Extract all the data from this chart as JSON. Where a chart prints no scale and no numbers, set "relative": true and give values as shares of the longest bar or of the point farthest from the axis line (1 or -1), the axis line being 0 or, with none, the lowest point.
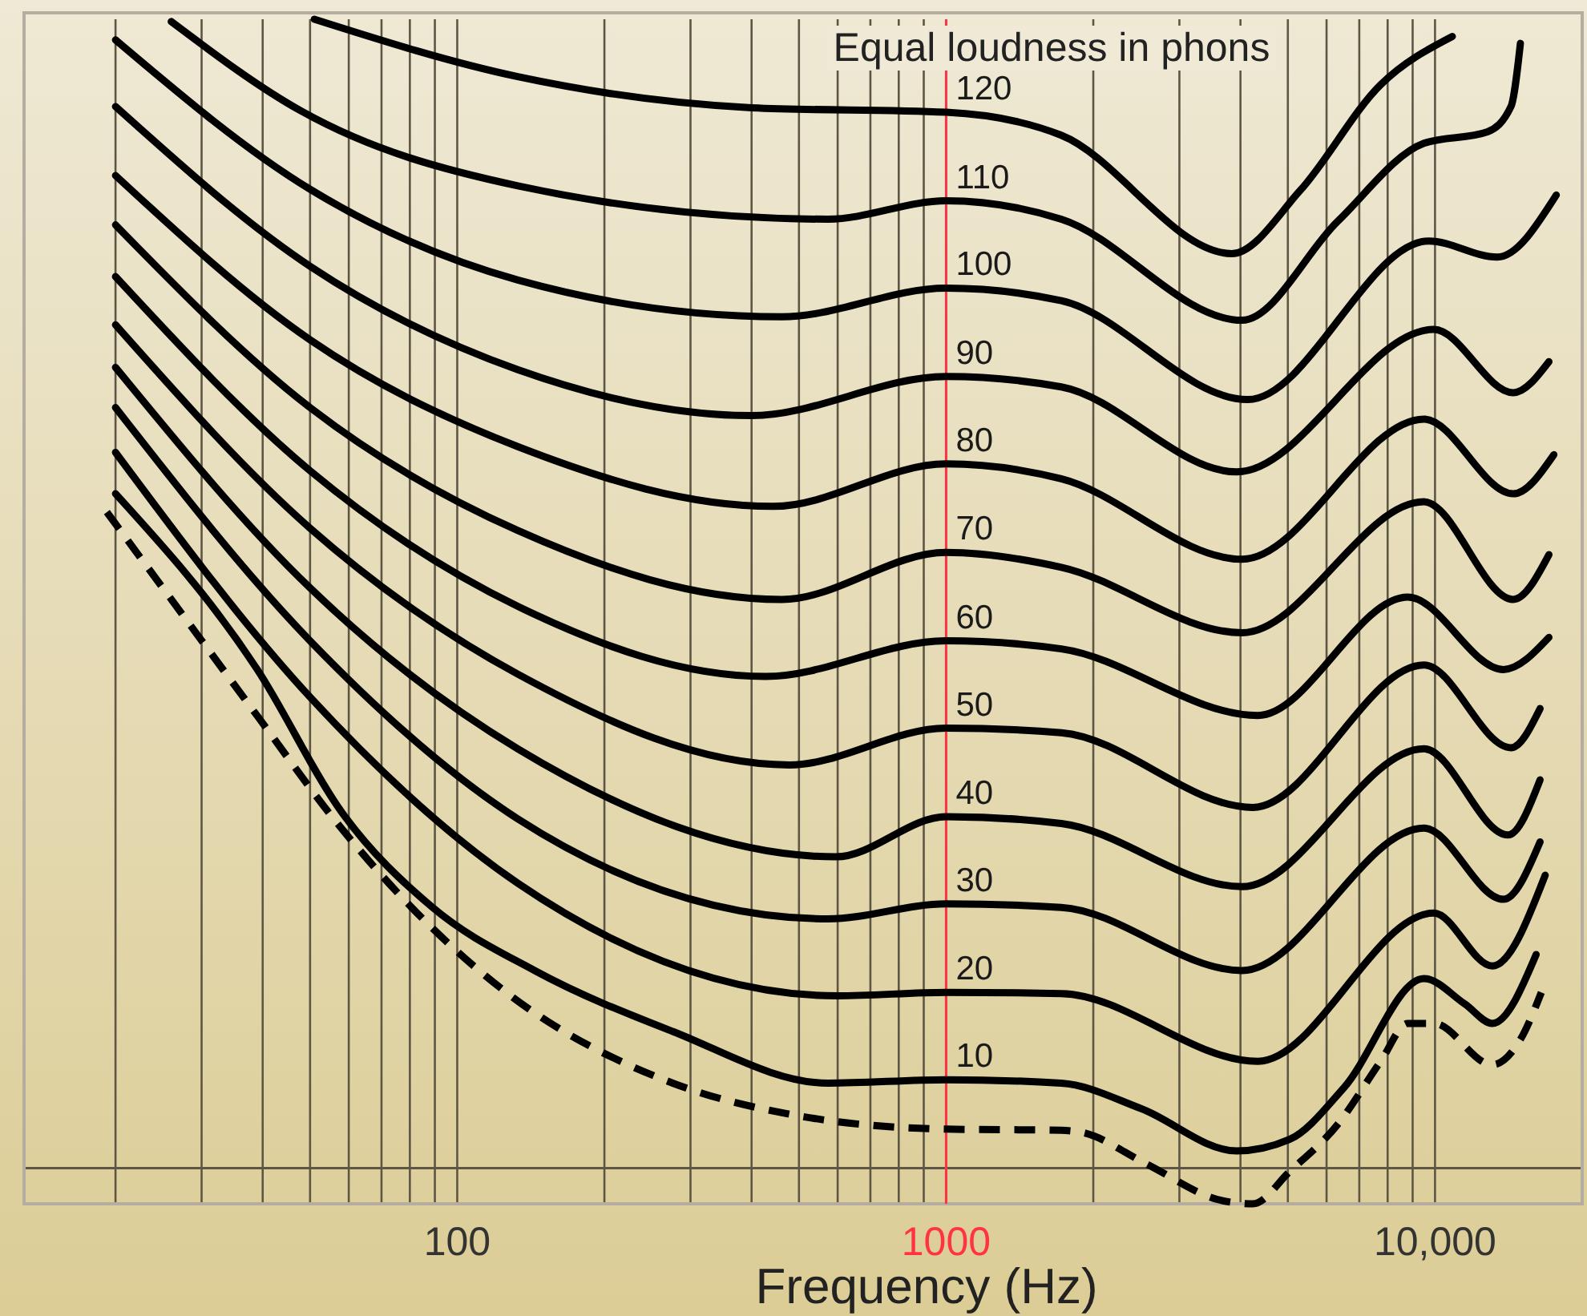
{
  "chart_data": {
    "type": "line",
    "xlabel": "Frequency (Hz)",
    "annotations": [
      "Equal loudness in phons"
    ],
    "log": "x",
    "grid": "x",
    "relative": true,
    "xlim": [
      13,
      20000
    ],
    "xticks": [
      {
        "value": 20,
        "label": null
      },
      {
        "value": 30,
        "label": null
      },
      {
        "value": 40,
        "label": null
      },
      {
        "value": 50,
        "label": null
      },
      {
        "value": 60,
        "label": null
      },
      {
        "value": 70,
        "label": null
      },
      {
        "value": 80,
        "label": null
      },
      {
        "value": 90,
        "label": null
      },
      100,
      {
        "value": 200,
        "label": null
      },
      {
        "value": 300,
        "label": null
      },
      {
        "value": 400,
        "label": null
      },
      {
        "value": 500,
        "label": null
      },
      {
        "value": 600,
        "label": null
      },
      {
        "value": 700,
        "label": null
      },
      {
        "value": 800,
        "label": null
      },
      {
        "value": 900,
        "label": null
      },
      1000,
      {
        "value": 2000,
        "label": null
      },
      {
        "value": 3000,
        "label": null
      },
      {
        "value": 4000,
        "label": null
      },
      {
        "value": 5000,
        "label": null
      },
      {
        "value": 6000,
        "label": null
      },
      {
        "value": 7000,
        "label": null
      },
      {
        "value": 8000,
        "label": null
      },
      {
        "value": 9000,
        "label": null
      },
      {
        "value": 10000,
        "label": "10,000"
      }
    ],
    "ref_lines": [
      {
        "axis": "x",
        "value": 1000,
        "color": "#ff3344"
      }
    ],
    "series": [
      {
        "name": "120",
        "color": "#000000",
        "x": [
          51,
          133,
          400,
          1000,
          1720,
          3840,
          5300,
          7740,
          10850
        ],
        "values": [
          1.0,
          0.95,
          0.923,
          0.919,
          0.899,
          0.796,
          0.851,
          0.943,
          0.985
        ]
      },
      {
        "name": "110",
        "color": "#000000",
        "x": [
          26,
          48,
          133,
          573,
          1000,
          1720,
          4030,
          6320,
          9490,
          12800,
          14300,
          14950
        ],
        "values": [
          0.998,
          0.92,
          0.855,
          0.826,
          0.842,
          0.826,
          0.738,
          0.824,
          0.892,
          0.902,
          0.924,
          0.979
        ]
      },
      {
        "name": "100",
        "color": "#000000",
        "x": [
          20,
          50,
          133,
          461,
          1000,
          1720,
          4140,
          9710,
          13400,
          17700
        ],
        "values": [
          0.982,
          0.852,
          0.773,
          0.741,
          0.766,
          0.755,
          0.669,
          0.807,
          0.793,
          0.847
        ]
      },
      {
        "name": "90",
        "color": "#000000",
        "x": [
          20,
          50,
          133,
          400,
          1000,
          1720,
          3930,
          9940,
          14450,
          17100
        ],
        "values": [
          0.924,
          0.785,
          0.695,
          0.655,
          0.689,
          0.68,
          0.606,
          0.73,
          0.675,
          0.702
        ]
      },
      {
        "name": "80",
        "color": "#000000",
        "x": [
          20,
          50,
          133,
          443,
          1000,
          1720,
          4030,
          9490,
          14450,
          17500
        ],
        "values": [
          0.864,
          0.721,
          0.628,
          0.576,
          0.613,
          0.6,
          0.53,
          0.652,
          0.587,
          0.621
        ]
      },
      {
        "name": "70",
        "color": "#000000",
        "x": [
          20,
          50,
          133,
          461,
          1000,
          1720,
          4030,
          9490,
          14450,
          17100
        ],
        "values": [
          0.821,
          0.662,
          0.555,
          0.495,
          0.536,
          0.523,
          0.466,
          0.58,
          0.495,
          0.534
        ]
      },
      {
        "name": "60",
        "color": "#000000",
        "x": [
          20,
          50,
          133,
          427,
          1000,
          1720,
          4340,
          8800,
          13800,
          17100
        ],
        "values": [
          0.776,
          0.607,
          0.489,
          0.428,
          0.459,
          0.452,
          0.394,
          0.497,
          0.434,
          0.462
        ]
      },
      {
        "name": "50",
        "color": "#000000",
        "x": [
          20,
          50,
          133,
          478,
          1000,
          1720,
          4240,
          9490,
          14300,
          16400
        ],
        "values": [
          0.734,
          0.557,
          0.43,
          0.351,
          0.383,
          0.379,
          0.314,
          0.438,
          0.366,
          0.4
        ]
      },
      {
        "name": "40",
        "color": "#000000",
        "x": [
          20,
          50,
          133,
          595,
          1000,
          1720,
          4030,
          9490,
          14100,
          16400
        ],
        "values": [
          0.697,
          0.505,
          0.365,
          0.271,
          0.306,
          0.3,
          0.245,
          0.365,
          0.29,
          0.338
        ]
      },
      {
        "name": "30",
        "color": "#000000",
        "x": [
          20,
          50,
          133,
          573,
          1000,
          1720,
          4030,
          9490,
          13800,
          16400
        ],
        "values": [
          0.662,
          0.459,
          0.304,
          0.217,
          0.23,
          0.227,
          0.172,
          0.296,
          0.234,
          0.284
        ]
      },
      {
        "name": "20",
        "color": "#000000",
        "x": [
          20,
          50,
          133,
          600,
          1000,
          1720,
          4340,
          9940,
          13100,
          16800
        ],
        "values": [
          0.623,
          0.41,
          0.248,
          0.15,
          0.153,
          0.152,
          0.093,
          0.222,
          0.176,
          0.255
        ]
      },
      {
        "name": "10",
        "color": "#000000",
        "x": [
          20,
          39,
          58,
          89,
          144,
          276,
          573,
          1000,
          1720,
          2500,
          3930,
          5040,
          6510,
          9490,
          11500,
          13100,
          16100
        ],
        "values": [
          0.587,
          0.434,
          0.31,
          0.227,
          0.172,
          0.119,
          0.074,
          0.077,
          0.074,
          0.052,
          0.015,
          0.025,
          0.07,
          0.165,
          0.143,
          0.126,
          0.186
        ]
      },
      {
        "color": "#000000",
        "line_style": "dashed",
        "x": [
          19.2,
          27.4,
          39.1,
          56.9,
          82.8,
          126,
          276,
          478,
          1000,
          1720,
          1900,
          2560,
          3650,
          4240,
          5040,
          6320,
          7740,
          8800,
          9940,
          13100,
          14950,
          16500
        ],
        "values": [
          0.571,
          0.482,
          0.393,
          0.3,
          0.222,
          0.153,
          0.074,
          0.047,
          0.034,
          0.033,
          0.031,
          0.004,
          -0.028,
          -0.031,
          -0.003,
          0.038,
          0.093,
          0.126,
          0.126,
          0.09,
          0.112,
          0.153
        ]
      }
    ]
  }
}
